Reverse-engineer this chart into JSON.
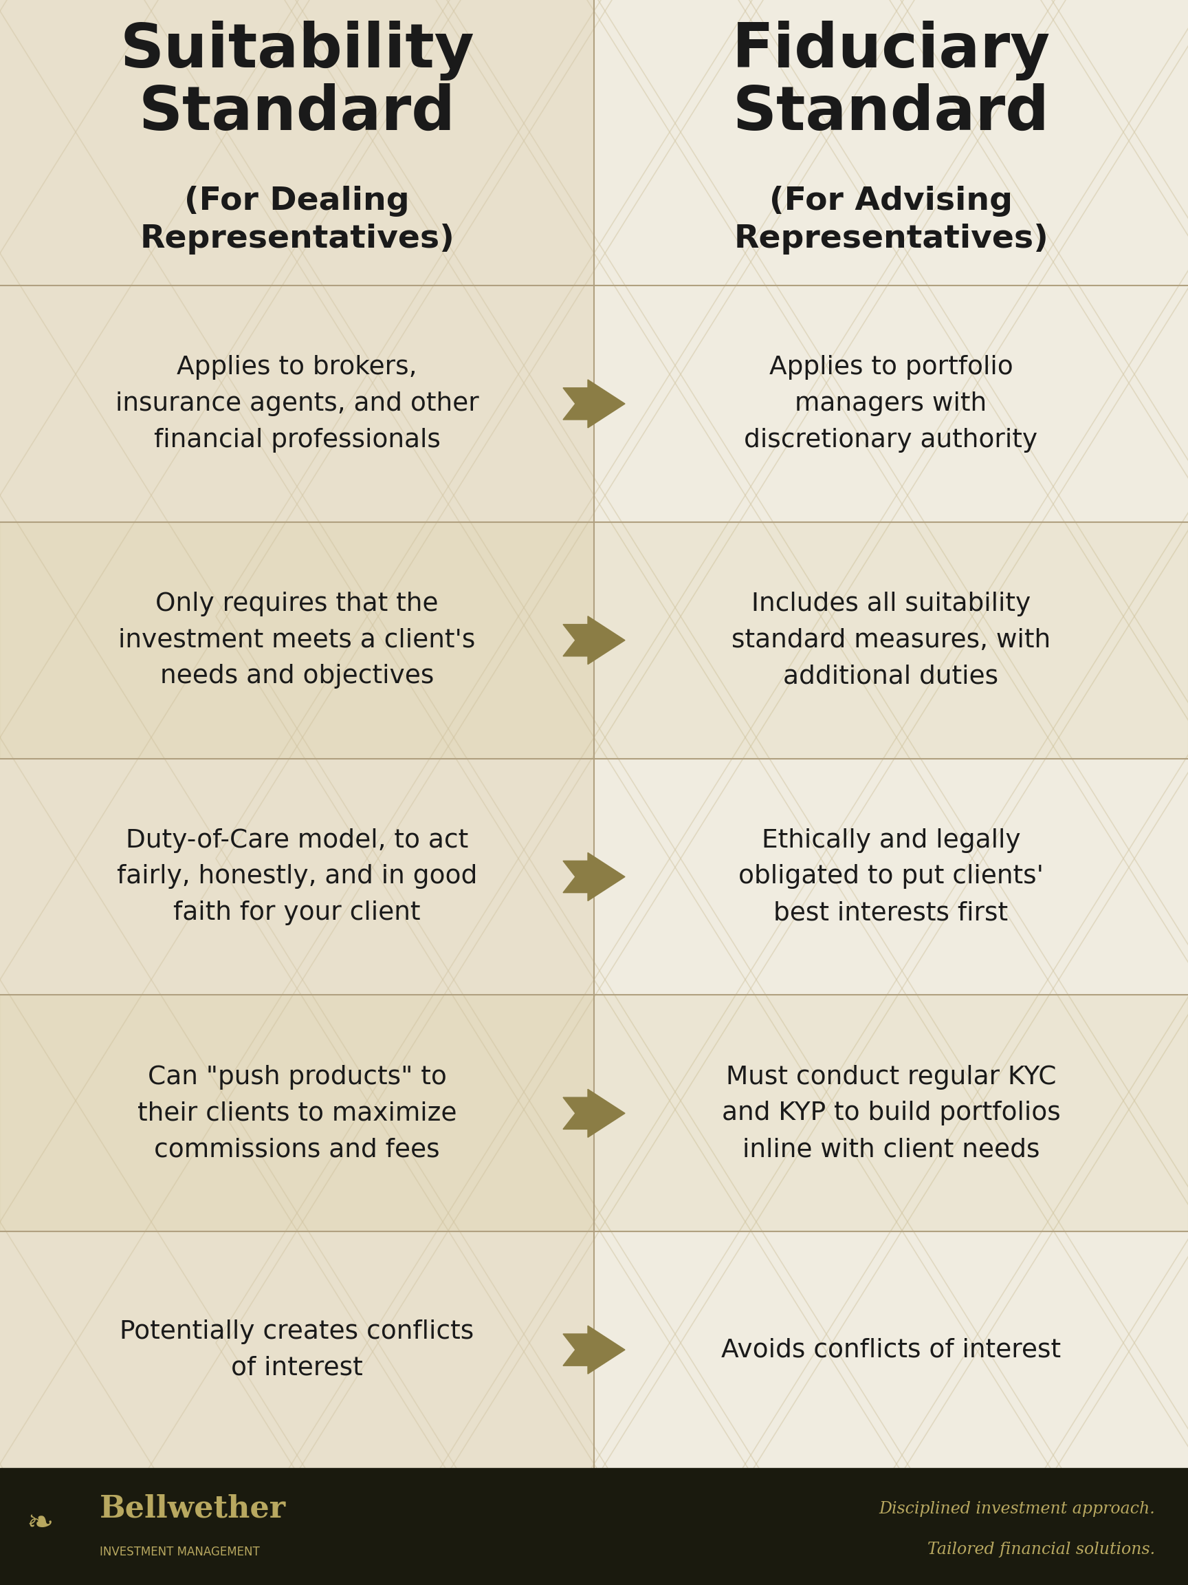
{
  "bg_color_left": "#e8e0cc",
  "bg_color_right": "#f0ece0",
  "footer_color": "#1a1a0e",
  "divider_color": "#b0a080",
  "diamond_color": "#d4c8a8",
  "arrow_color": "#8b7d45",
  "text_color": "#1a1a1a",
  "footer_text_color": "#b8a860",
  "left_title": "Suitability\nStandard",
  "left_subtitle": "(For Dealing\nRepresentatives)",
  "right_title": "Fiduciary\nStandard",
  "right_subtitle": "(For Advising\nRepresentatives)",
  "rows": [
    {
      "left": "Applies to brokers,\ninsurance agents, and other\nfinancial professionals",
      "right": "Applies to portfolio\nmanagers with\ndiscretionary authority"
    },
    {
      "left": "Only requires that the\ninvestment meets a client's\nneeds and objectives",
      "right": "Includes all suitability\nstandard measures, with\nadditional duties"
    },
    {
      "left": "Duty-of-Care model, to act\nfairly, honestly, and in good\nfaith for your client",
      "right": "Ethically and legally\nobligated to put clients'\nbest interests first"
    },
    {
      "left": "Can \"push products\" to\ntheir clients to maximize\ncommissions and fees",
      "right": "Must conduct regular KYC\nand KYP to build portfolios\ninline with client needs"
    },
    {
      "left": "Potentially creates conflicts\nof interest",
      "right": "Avoids conflicts of interest"
    }
  ],
  "company_name": "Bellwether",
  "company_sub": "INVESTMENT MANAGEMENT",
  "tagline1": "Disciplined investment approach.",
  "tagline2": "Tailored financial solutions."
}
